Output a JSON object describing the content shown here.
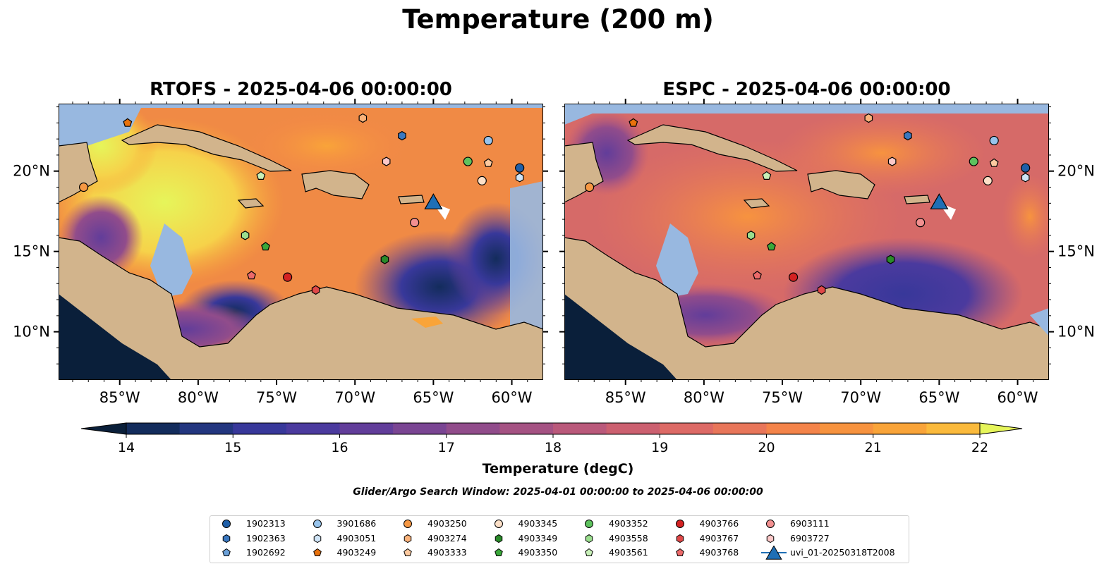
{
  "title": "Temperature (200 m)",
  "panels": [
    {
      "title": "RTOFS - 2025-04-06 00:00:00"
    },
    {
      "title": "ESPC - 2025-04-06 00:00:00"
    }
  ],
  "axes": {
    "lon_ticks": [
      "85°W",
      "80°W",
      "75°W",
      "70°W",
      "65°W",
      "60°W"
    ],
    "lat_ticks": [
      "20°N",
      "15°N",
      "10°N"
    ]
  },
  "colorbar": {
    "label": "Temperature (degC)",
    "ticks": [
      "14",
      "15",
      "16",
      "17",
      "18",
      "19",
      "20",
      "21",
      "22"
    ],
    "range": [
      14,
      22
    ],
    "extend": "both",
    "colormap": [
      "#0a1f3a",
      "#132c5c",
      "#23367f",
      "#38389a",
      "#4b3a9e",
      "#623d9a",
      "#7a4593",
      "#914c8b",
      "#a55283",
      "#ba597b",
      "#cc6070",
      "#dd6a66",
      "#e8765a",
      "#f4844a",
      "#f7933f",
      "#f9a439",
      "#fbba3c",
      "#f6d24a",
      "#e6f55a"
    ]
  },
  "search_window": "Glider/Argo Search Window: 2025-04-01 00:00:00 to 2025-04-06 00:00:00",
  "land_color": "#d2b48c",
  "shallow_color": "#98b8e0",
  "legend": [
    {
      "label": "1902313",
      "color": "#1f5fa8",
      "marker": "circle"
    },
    {
      "label": "1902363",
      "color": "#3b78c0",
      "marker": "hexagon"
    },
    {
      "label": "1902692",
      "color": "#6aa0d8",
      "marker": "pentagon"
    },
    {
      "label": "3901686",
      "color": "#98c4ec",
      "marker": "circle"
    },
    {
      "label": "4903051",
      "color": "#cfe4f6",
      "marker": "hexagon"
    },
    {
      "label": "4903249",
      "color": "#e8720c",
      "marker": "pentagon"
    },
    {
      "label": "4903250",
      "color": "#f69844",
      "marker": "circle"
    },
    {
      "label": "4903274",
      "color": "#fab27a",
      "marker": "hexagon"
    },
    {
      "label": "4903333",
      "color": "#fdcaa0",
      "marker": "pentagon"
    },
    {
      "label": "4903345",
      "color": "#fde0c8",
      "marker": "circle"
    },
    {
      "label": "4903349",
      "color": "#2a8a2a",
      "marker": "hexagon"
    },
    {
      "label": "4903350",
      "color": "#3aa83a",
      "marker": "pentagon"
    },
    {
      "label": "4903352",
      "color": "#5ec25e",
      "marker": "circle"
    },
    {
      "label": "4903558",
      "color": "#9ade8e",
      "marker": "hexagon"
    },
    {
      "label": "4903561",
      "color": "#c8f0b8",
      "marker": "pentagon"
    },
    {
      "label": "4903766",
      "color": "#d42222",
      "marker": "circle"
    },
    {
      "label": "4903767",
      "color": "#e04848",
      "marker": "hexagon"
    },
    {
      "label": "4903768",
      "color": "#ec6a6a",
      "marker": "pentagon"
    },
    {
      "label": "6903111",
      "color": "#f29090",
      "marker": "circle"
    },
    {
      "label": "6903727",
      "color": "#fcc8c8",
      "marker": "hexagon"
    },
    {
      "label": "uvi_01-20250318T2008",
      "color": "#1f6fb5",
      "marker": "triangle"
    }
  ],
  "floats": [
    {
      "id": "1902313",
      "lon": -59.5,
      "lat": 20.2
    },
    {
      "id": "1902363",
      "lon": -67.0,
      "lat": 22.2
    },
    {
      "id": "3901686",
      "lon": -61.5,
      "lat": 21.9
    },
    {
      "id": "4903051",
      "lon": -59.5,
      "lat": 19.6
    },
    {
      "id": "4903249",
      "lon": -84.5,
      "lat": 23.0
    },
    {
      "id": "4903250",
      "lon": -87.3,
      "lat": 19.0
    },
    {
      "id": "4903274",
      "lon": -69.5,
      "lat": 23.3
    },
    {
      "id": "4903333",
      "lon": -61.5,
      "lat": 20.5
    },
    {
      "id": "4903345",
      "lon": -61.9,
      "lat": 19.4
    },
    {
      "id": "4903349",
      "lon": -68.1,
      "lat": 14.5
    },
    {
      "id": "4903350",
      "lon": -75.7,
      "lat": 15.3
    },
    {
      "id": "4903352",
      "lon": -62.8,
      "lat": 20.6
    },
    {
      "id": "4903558",
      "lon": -77.0,
      "lat": 16.0
    },
    {
      "id": "4903561",
      "lon": -76.0,
      "lat": 19.7
    },
    {
      "id": "4903766",
      "lon": -74.3,
      "lat": 13.4
    },
    {
      "id": "4903767",
      "lon": -72.5,
      "lat": 12.6
    },
    {
      "id": "4903768",
      "lon": -76.6,
      "lat": 13.5
    },
    {
      "id": "6903111",
      "lon": -66.2,
      "lat": 16.8
    },
    {
      "id": "6903727",
      "lon": -68.0,
      "lat": 20.6
    }
  ],
  "glider": {
    "id": "uvi_01-20250318T2008",
    "lon": -65.0,
    "lat": 18.0
  }
}
